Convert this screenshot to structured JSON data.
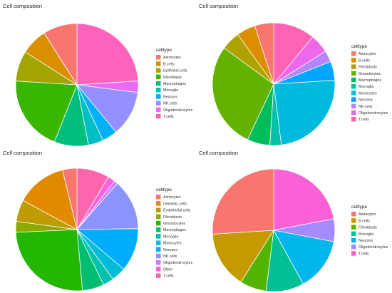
{
  "chart_data": [
    {
      "type": "pie",
      "title": "Cell composition",
      "legend_title": "celltype",
      "categories": [
        "Astrocytes",
        "B.cells",
        "Epithelial.cells",
        "Fibroblasts",
        "Macrophages",
        "Microglia",
        "Neurons",
        "NK.cells",
        "Oligodendrocytes",
        "T.cells"
      ],
      "colors": [
        "#F8766D",
        "#D89000",
        "#A3A500",
        "#39B600",
        "#00BF7D",
        "#00BFC4",
        "#00B0F6",
        "#9590FF",
        "#E76BF3",
        "#FF62BC"
      ],
      "values": [
        9,
        7,
        8,
        20,
        9,
        4,
        4,
        12,
        3,
        24
      ]
    },
    {
      "type": "pie",
      "title": "Cell composition",
      "legend_title": "celltype",
      "categories": [
        "Astrocytes",
        "B.cells",
        "Fibroblasts",
        "Granulocytes",
        "Macrophages",
        "Microglia",
        "Monocytes",
        "Neurons",
        "NK.cells",
        "Oligodendrocytes",
        "T.cells"
      ],
      "colors": [
        "#F8766D",
        "#DB8E00",
        "#AEA200",
        "#64B200",
        "#00BD5C",
        "#00C1A7",
        "#00BADE",
        "#00A6FF",
        "#B385FF",
        "#EF67EB",
        "#FF63B6"
      ],
      "values": [
        5,
        5,
        5,
        28,
        6,
        3,
        24,
        5,
        3,
        5,
        11
      ]
    },
    {
      "type": "pie",
      "title": "Cell composition",
      "legend_title": "celltype",
      "categories": [
        "Astrocytes",
        "Dendritic.cells",
        "Endothelial.cells",
        "Fibroblasts",
        "Granulocytes",
        "Macrophages",
        "Microglia",
        "Monocytes",
        "Neurons",
        "NK.cells",
        "Oligodendrocytes",
        "Other",
        "T.cells"
      ],
      "colors": [
        "#F8766D",
        "#E18A00",
        "#BE9C00",
        "#8CAB00",
        "#24B700",
        "#00BE70",
        "#00C1AB",
        "#00BBDA",
        "#00ACFC",
        "#8B93FF",
        "#D575FE",
        "#F962DD",
        "#FF65AC"
      ],
      "values": [
        4,
        14,
        6,
        3,
        27,
        6,
        3,
        4,
        12,
        14,
        1,
        2,
        9
      ]
    },
    {
      "type": "pie",
      "title": "Cell composition",
      "legend_title": "celltype",
      "categories": [
        "Astrocytes",
        "B.cells",
        "Fibroblasts",
        "Microglia",
        "Neurons",
        "Oligodendrocytes",
        "T.cells"
      ],
      "colors": [
        "#F8766D",
        "#C49A00",
        "#53B400",
        "#00C094",
        "#00B6EB",
        "#A58AFF",
        "#FB61D7"
      ],
      "values": [
        26,
        15,
        7,
        10,
        14,
        6,
        22
      ]
    }
  ]
}
